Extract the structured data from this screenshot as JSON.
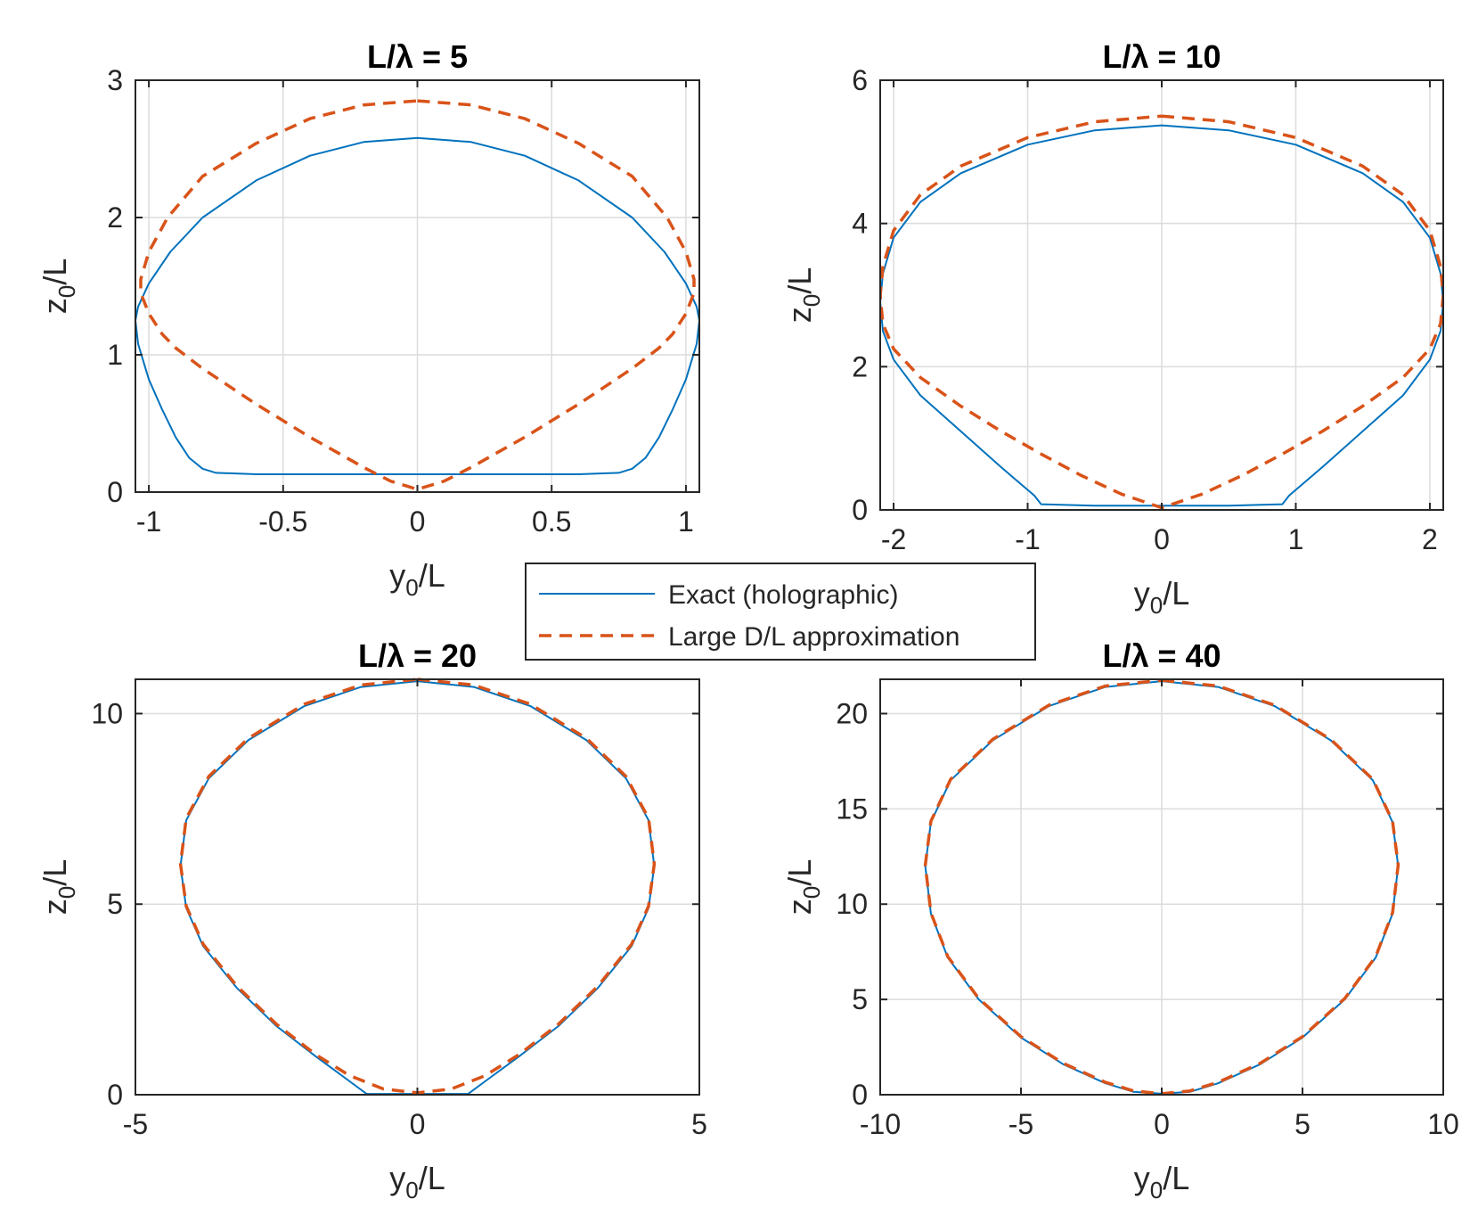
{
  "legend": {
    "entries": [
      {
        "label": "Exact (holographic)",
        "color": "#0072BD",
        "style": "solid"
      },
      {
        "label": "Large D/L approximation",
        "color": "#D95319",
        "style": "dashed"
      }
    ]
  },
  "chart_data": [
    {
      "type": "line",
      "title": "L/λ = 5",
      "xlabel": {
        "base": "y",
        "sub": "0",
        "rest": "/L"
      },
      "ylabel": {
        "base": "z",
        "sub": "0",
        "rest": "/L"
      },
      "xlim": [
        -1.05,
        1.05
      ],
      "ylim": [
        0,
        3
      ],
      "xticks": [
        -1,
        -0.5,
        0,
        0.5,
        1
      ],
      "xtick_labels": [
        "-1",
        "-0.5",
        "0",
        "0.5",
        "1"
      ],
      "yticks": [
        0,
        1,
        2,
        3
      ],
      "ytick_labels": [
        "0",
        "1",
        "2",
        "3"
      ],
      "grid": true,
      "series": [
        {
          "name": "Exact (holographic)",
          "x": [
            0,
            0.2,
            0.4,
            0.6,
            0.8,
            0.92,
            1.0,
            1.04,
            1.05,
            1.04,
            1.0,
            0.95,
            0.9,
            0.85,
            0.8,
            0.75,
            0.6,
            0.4,
            0.2,
            0,
            -0.2,
            -0.4,
            -0.6,
            -0.75,
            -0.8,
            -0.85,
            -0.9,
            -0.95,
            -1.0,
            -1.04,
            -1.05,
            -1.04,
            -1.0,
            -0.92,
            -0.8,
            -0.6,
            -0.4,
            -0.2,
            0
          ],
          "y": [
            2.58,
            2.55,
            2.45,
            2.27,
            2.0,
            1.75,
            1.52,
            1.35,
            1.25,
            1.08,
            0.82,
            0.6,
            0.4,
            0.25,
            0.17,
            0.14,
            0.13,
            0.13,
            0.13,
            0.13,
            0.13,
            0.13,
            0.13,
            0.14,
            0.17,
            0.25,
            0.4,
            0.6,
            0.82,
            1.08,
            1.25,
            1.35,
            1.52,
            1.75,
            2.0,
            2.27,
            2.45,
            2.55,
            2.58
          ]
        },
        {
          "name": "Large D/L approximation",
          "x": [
            0,
            0.2,
            0.4,
            0.6,
            0.8,
            0.93,
            1.0,
            1.03,
            1.03,
            1.0,
            0.95,
            0.9,
            0.8,
            0.7,
            0.6,
            0.5,
            0.4,
            0.3,
            0.2,
            0.1,
            0,
            -0.1,
            -0.2,
            -0.3,
            -0.4,
            -0.5,
            -0.6,
            -0.7,
            -0.8,
            -0.9,
            -0.95,
            -1.0,
            -1.03,
            -1.03,
            -1.0,
            -0.93,
            -0.8,
            -0.6,
            -0.4,
            -0.2,
            0
          ],
          "y": [
            2.85,
            2.82,
            2.72,
            2.54,
            2.3,
            2.0,
            1.75,
            1.55,
            1.45,
            1.3,
            1.15,
            1.05,
            0.9,
            0.77,
            0.64,
            0.52,
            0.4,
            0.29,
            0.18,
            0.08,
            0.02,
            0.08,
            0.18,
            0.29,
            0.4,
            0.52,
            0.64,
            0.77,
            0.9,
            1.05,
            1.15,
            1.3,
            1.45,
            1.55,
            1.75,
            2.0,
            2.3,
            2.54,
            2.72,
            2.82,
            2.85
          ]
        }
      ]
    },
    {
      "type": "line",
      "title": "L/λ = 10",
      "xlabel": {
        "base": "y",
        "sub": "0",
        "rest": "/L"
      },
      "ylabel": {
        "base": "z",
        "sub": "0",
        "rest": "/L"
      },
      "xlim": [
        -2.1,
        2.1
      ],
      "ylim": [
        0,
        6
      ],
      "xticks": [
        -2,
        -1,
        0,
        1,
        2
      ],
      "xtick_labels": [
        "-2",
        "-1",
        "0",
        "1",
        "2"
      ],
      "yticks": [
        0,
        2,
        4,
        6
      ],
      "ytick_labels": [
        "0",
        "2",
        "4",
        "6"
      ],
      "grid": true,
      "series": [
        {
          "name": "Exact (holographic)",
          "x": [
            0,
            0.5,
            1.0,
            1.5,
            1.8,
            2.0,
            2.08,
            2.1,
            2.08,
            2.0,
            1.8,
            1.5,
            1.2,
            0.95,
            0.9,
            0.5,
            0,
            -0.5,
            -0.9,
            -0.95,
            -1.2,
            -1.5,
            -1.8,
            -2.0,
            -2.08,
            -2.1,
            -2.08,
            -2.0,
            -1.8,
            -1.5,
            -1.0,
            -0.5,
            0
          ],
          "y": [
            5.37,
            5.3,
            5.1,
            4.7,
            4.3,
            3.8,
            3.3,
            2.9,
            2.5,
            2.1,
            1.6,
            1.1,
            0.6,
            0.2,
            0.08,
            0.06,
            0.06,
            0.06,
            0.08,
            0.2,
            0.6,
            1.1,
            1.6,
            2.1,
            2.5,
            2.9,
            3.3,
            3.8,
            4.3,
            4.7,
            5.1,
            5.3,
            5.37
          ]
        },
        {
          "name": "Large D/L approximation",
          "x": [
            0,
            0.5,
            1.0,
            1.5,
            1.8,
            2.0,
            2.08,
            2.1,
            2.08,
            2.0,
            1.8,
            1.5,
            1.2,
            0.9,
            0.6,
            0.3,
            0,
            -0.3,
            -0.6,
            -0.9,
            -1.2,
            -1.5,
            -1.8,
            -2.0,
            -2.08,
            -2.1,
            -2.08,
            -2.0,
            -1.8,
            -1.5,
            -1.0,
            -0.5,
            0
          ],
          "y": [
            5.5,
            5.42,
            5.2,
            4.8,
            4.4,
            3.9,
            3.4,
            3.0,
            2.6,
            2.25,
            1.85,
            1.45,
            1.1,
            0.78,
            0.48,
            0.22,
            0.03,
            0.22,
            0.48,
            0.78,
            1.1,
            1.45,
            1.85,
            2.25,
            2.6,
            3.0,
            3.4,
            3.9,
            4.4,
            4.8,
            5.2,
            5.42,
            5.5
          ]
        }
      ]
    },
    {
      "type": "line",
      "title": "L/λ = 20",
      "xlabel": {
        "base": "y",
        "sub": "0",
        "rest": "/L"
      },
      "ylabel": {
        "base": "z",
        "sub": "0",
        "rest": "/L"
      },
      "xlim": [
        -5,
        5
      ],
      "ylim": [
        0,
        10.9
      ],
      "xticks": [
        -5,
        0,
        5
      ],
      "xtick_labels": [
        "-5",
        "0",
        "5"
      ],
      "yticks": [
        0,
        5,
        10
      ],
      "ytick_labels": [
        "0",
        "5",
        "10"
      ],
      "grid": true,
      "series": [
        {
          "name": "Exact (holographic)",
          "x": [
            0,
            1.0,
            2.0,
            3.0,
            3.7,
            4.1,
            4.2,
            4.1,
            3.8,
            3.2,
            2.5,
            1.8,
            1.2,
            0.9,
            0,
            -0.9,
            -1.2,
            -1.8,
            -2.5,
            -3.2,
            -3.8,
            -4.1,
            -4.2,
            -4.1,
            -3.7,
            -3.0,
            -2.0,
            -1.0,
            0
          ],
          "y": [
            10.85,
            10.7,
            10.2,
            9.3,
            8.3,
            7.2,
            6.0,
            4.9,
            3.9,
            2.8,
            1.8,
            1.0,
            0.35,
            0.02,
            0.02,
            0.02,
            0.35,
            1.0,
            1.8,
            2.8,
            3.9,
            4.9,
            6.0,
            7.2,
            8.3,
            9.3,
            10.2,
            10.7,
            10.85
          ]
        },
        {
          "name": "Large D/L approximation",
          "x": [
            0,
            1.0,
            2.0,
            3.0,
            3.7,
            4.1,
            4.2,
            4.1,
            3.8,
            3.2,
            2.5,
            1.8,
            1.2,
            0.6,
            0,
            -0.6,
            -1.2,
            -1.8,
            -2.5,
            -3.2,
            -3.8,
            -4.1,
            -4.2,
            -4.1,
            -3.7,
            -3.0,
            -2.0,
            -1.0,
            0
          ],
          "y": [
            10.9,
            10.75,
            10.25,
            9.35,
            8.35,
            7.25,
            6.05,
            4.95,
            3.95,
            2.85,
            1.85,
            1.05,
            0.5,
            0.15,
            0.05,
            0.15,
            0.5,
            1.05,
            1.85,
            2.85,
            3.95,
            4.95,
            6.05,
            7.25,
            8.35,
            9.35,
            10.25,
            10.75,
            10.9
          ]
        }
      ]
    },
    {
      "type": "line",
      "title": "L/λ = 40",
      "xlabel": {
        "base": "y",
        "sub": "0",
        "rest": "/L"
      },
      "ylabel": {
        "base": "z",
        "sub": "0",
        "rest": "/L"
      },
      "xlim": [
        -10,
        10
      ],
      "ylim": [
        0,
        21.8
      ],
      "xticks": [
        -10,
        -5,
        0,
        5,
        10
      ],
      "xtick_labels": [
        "-10",
        "-5",
        "0",
        "5",
        "10"
      ],
      "yticks": [
        0,
        5,
        10,
        15,
        20
      ],
      "ytick_labels": [
        "0",
        "5",
        "10",
        "15",
        "20"
      ],
      "grid": true,
      "series": [
        {
          "name": "Exact (holographic)",
          "x": [
            0,
            2,
            4,
            6,
            7.5,
            8.2,
            8.4,
            8.2,
            7.6,
            6.5,
            5,
            3.5,
            2,
            1,
            0,
            -1,
            -2,
            -3.5,
            -5,
            -6.5,
            -7.6,
            -8.2,
            -8.4,
            -8.2,
            -7.5,
            -6,
            -4,
            -2,
            0
          ],
          "y": [
            21.7,
            21.4,
            20.4,
            18.6,
            16.5,
            14.3,
            12.0,
            9.5,
            7.2,
            5.0,
            3.0,
            1.6,
            0.6,
            0.15,
            0.05,
            0.15,
            0.6,
            1.6,
            3.0,
            5.0,
            7.2,
            9.5,
            12.0,
            14.3,
            16.5,
            18.6,
            20.4,
            21.4,
            21.7
          ]
        },
        {
          "name": "Large D/L approximation",
          "x": [
            0,
            2,
            4,
            6,
            7.5,
            8.2,
            8.4,
            8.2,
            7.6,
            6.5,
            5,
            3.5,
            2,
            1,
            0,
            -1,
            -2,
            -3.5,
            -5,
            -6.5,
            -7.6,
            -8.2,
            -8.4,
            -8.2,
            -7.5,
            -6,
            -4,
            -2,
            0
          ],
          "y": [
            21.75,
            21.45,
            20.45,
            18.65,
            16.55,
            14.35,
            12.05,
            9.55,
            7.25,
            5.05,
            3.05,
            1.65,
            0.65,
            0.2,
            0.05,
            0.2,
            0.65,
            1.65,
            3.05,
            5.05,
            7.25,
            9.55,
            12.05,
            14.35,
            16.55,
            18.65,
            20.45,
            21.45,
            21.75
          ]
        }
      ]
    }
  ]
}
